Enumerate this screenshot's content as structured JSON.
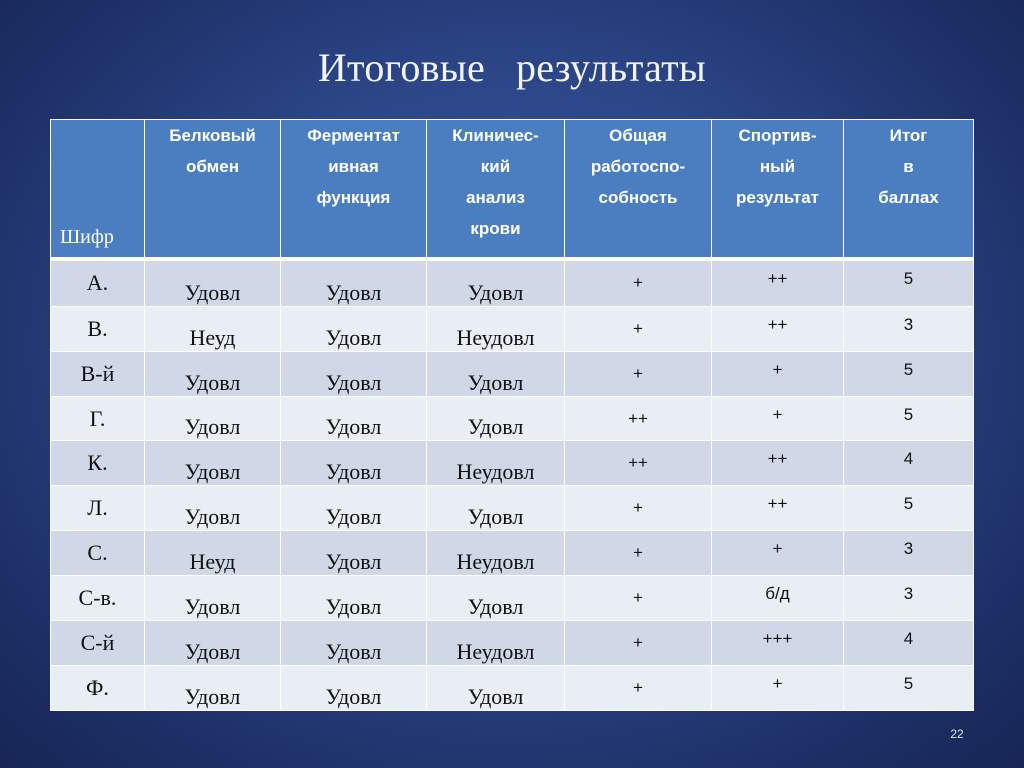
{
  "title": "Итоговые   результаты",
  "table": {
    "code_header": "Шифр",
    "headers": [
      [
        "Белковый",
        "обмен"
      ],
      [
        "Ферментат",
        "ивная",
        "функция"
      ],
      [
        "Клиничес-",
        "кий",
        "анализ",
        "крови"
      ],
      [
        "Общая",
        "работоспо-",
        "собность"
      ],
      [
        "Спортив-",
        "ный",
        "результат"
      ],
      [
        "Итог",
        "в",
        "баллах"
      ]
    ],
    "rows": [
      {
        "code": "А.",
        "protein": "Удовл",
        "enzyme": "Удовл",
        "clinical": "Удовл",
        "capacity": "+",
        "sport": "++",
        "total": "5"
      },
      {
        "code": "В.",
        "protein": "Неуд",
        "enzyme": "Удовл",
        "clinical": "Неудовл",
        "capacity": "+",
        "sport": "++",
        "total": "3"
      },
      {
        "code": "В-й",
        "protein": "Удовл",
        "enzyme": "Удовл",
        "clinical": "Удовл",
        "capacity": "+",
        "sport": "+",
        "total": "5"
      },
      {
        "code": "Г.",
        "protein": "Удовл",
        "enzyme": "Удовл",
        "clinical": "Удовл",
        "capacity": "++",
        "sport": "+",
        "total": "5"
      },
      {
        "code": "К.",
        "protein": "Удовл",
        "enzyme": "Удовл",
        "clinical": "Неудовл",
        "capacity": "++",
        "sport": "++",
        "total": "4"
      },
      {
        "code": "Л.",
        "protein": "Удовл",
        "enzyme": "Удовл",
        "clinical": "Удовл",
        "capacity": "+",
        "sport": "++",
        "total": "5"
      },
      {
        "code": "С.",
        "protein": "Неуд",
        "enzyme": "Удовл",
        "clinical": "Неудовл",
        "capacity": "+",
        "sport": "+",
        "total": "3"
      },
      {
        "code": "С-в.",
        "protein": "Удовл",
        "enzyme": "Удовл",
        "clinical": "Удовл",
        "capacity": "+",
        "sport": "б/д",
        "total": "3"
      },
      {
        "code": "С-й",
        "protein": "Удовл",
        "enzyme": "Удовл",
        "clinical": "Неудовл",
        "capacity": "+",
        "sport": "+++",
        "total": "4"
      },
      {
        "code": "Ф.",
        "protein": "Удовл",
        "enzyme": "Удовл",
        "clinical": "Удовл",
        "capacity": "+",
        "sport": "+",
        "total": "5"
      }
    ]
  },
  "slide_number": "22"
}
